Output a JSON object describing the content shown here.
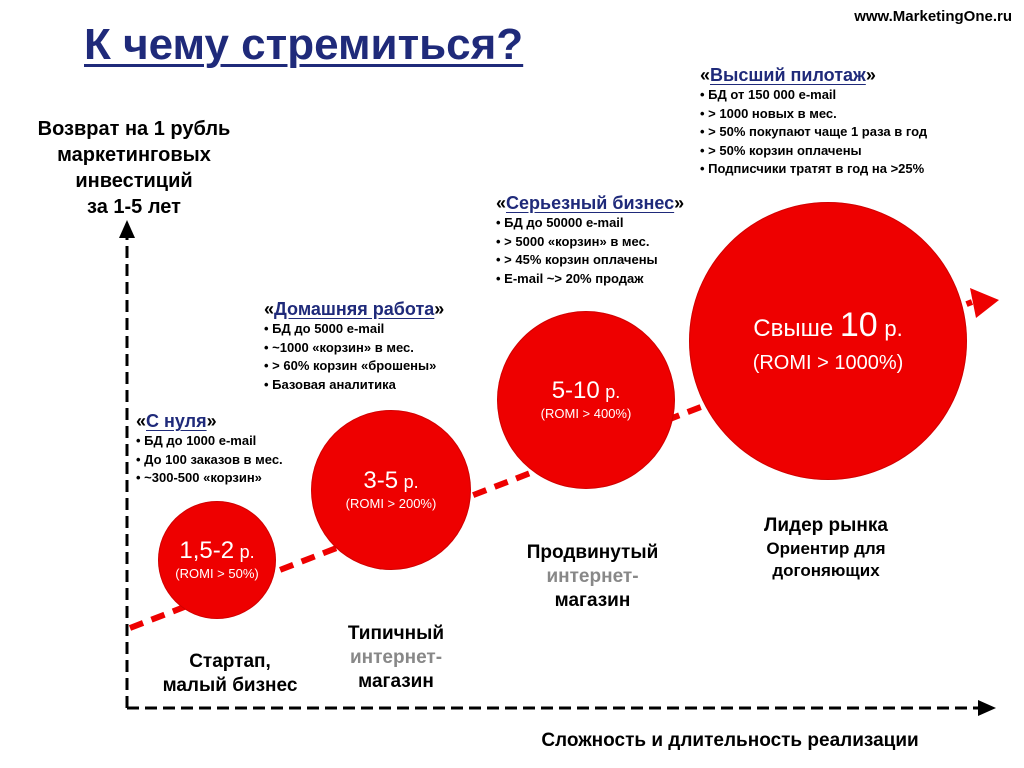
{
  "site_url": "www.MarketingOne.ru",
  "title": "К чему стремиться?",
  "axes": {
    "y_label": [
      "Возврат на 1 рубль",
      "маркетинговых",
      "инвестиций",
      "за 1-5 лет"
    ],
    "x_label": "Сложность и длительность реализации"
  },
  "colors": {
    "accent": "#ee0000",
    "title": "#1f2a7a",
    "muted": "#888888",
    "axis": "#000000"
  },
  "stages": [
    {
      "circle_value": "1,5-2",
      "circle_unit": "р.",
      "circle_romi": "(ROMI > 50%)",
      "name": "С нуля",
      "bullets": [
        "БД до 1000 e-mail",
        "До  100 заказов в мес.",
        "~300-500  «корзин»"
      ],
      "caption": [
        "Стартап,",
        "малый бизнес"
      ]
    },
    {
      "circle_value": "3-5",
      "circle_unit": "р.",
      "circle_romi": "(ROMI > 200%)",
      "name": "Домашняя работа",
      "bullets": [
        "БД до 5000 e-mail",
        "~1000 «корзин» в мес.",
        "> 60% корзин «брошены»",
        "Базовая аналитика"
      ],
      "caption": [
        "Типичный",
        "интернет-",
        "магазин"
      ]
    },
    {
      "circle_value": "5-10",
      "circle_unit": "р.",
      "circle_romi": "(ROMI > 400%)",
      "name": "Серьезный бизнес",
      "bullets": [
        "БД до 50000 e-mail",
        "> 5000 «корзин» в мес.",
        "> 45% корзин оплачены",
        "E-mail ~> 20% продаж"
      ],
      "caption": [
        "Продвинутый",
        "интернет-",
        "магазин"
      ]
    },
    {
      "circle_prefix": "Свыше",
      "circle_value": "10",
      "circle_unit": "р.",
      "circle_romi": "(ROMI > 1000%)",
      "name": "Высший пилотаж",
      "bullets": [
        "БД  от 150 000 e-mail",
        "> 1000 новых в мес.",
        "> 50% покупают  чаще 1 раза в год",
        "> 50% корзин оплачены",
        "Подписчики тратят в год на >25%"
      ],
      "caption": [
        "Лидер рынка",
        "Ориентир для",
        "догоняющих"
      ]
    }
  ]
}
